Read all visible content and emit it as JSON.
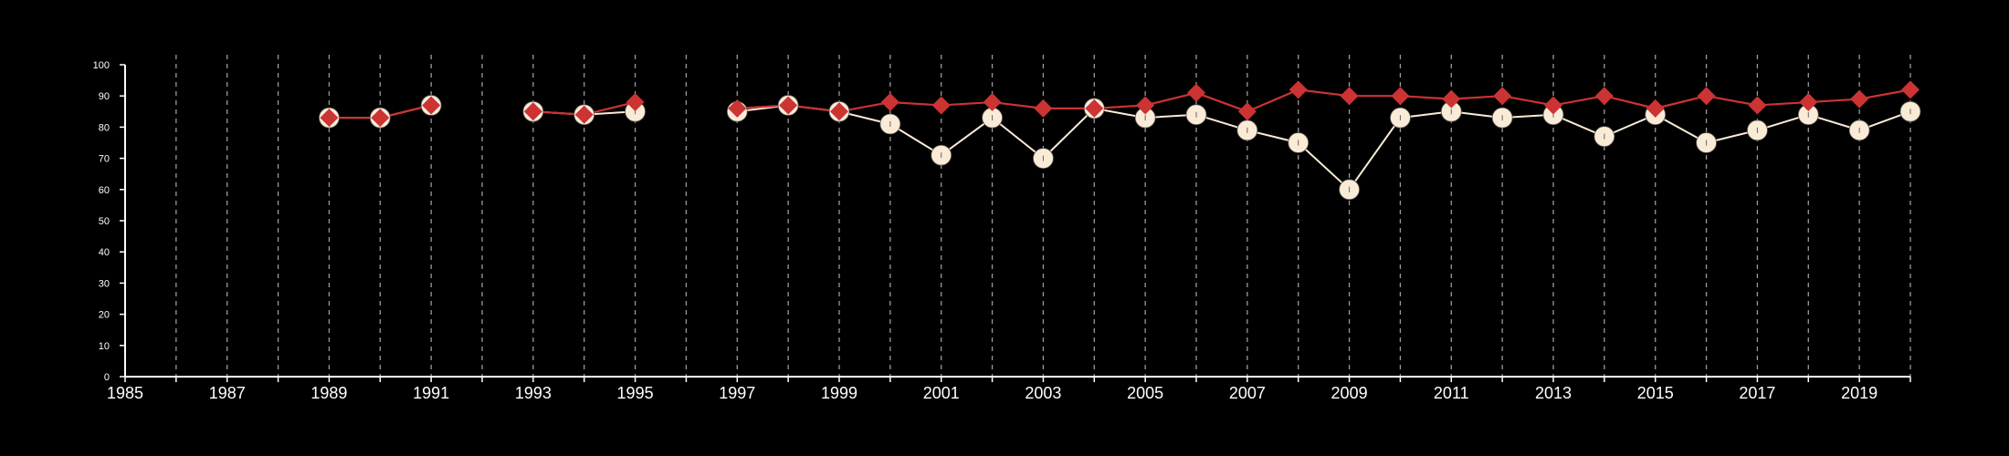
{
  "chart_data": {
    "type": "line",
    "title": "",
    "xlabel": "",
    "ylabel": "",
    "xlim": [
      1985,
      2020
    ],
    "ylim": [
      0,
      100
    ],
    "x_ticks": [
      1985,
      1987,
      1989,
      1991,
      1993,
      1995,
      1997,
      1999,
      2001,
      2003,
      2005,
      2007,
      2009,
      2011,
      2013,
      2015,
      2017,
      2019
    ],
    "y_ticks": [
      0,
      10,
      20,
      30,
      40,
      50,
      60,
      70,
      80,
      90,
      100
    ],
    "grid": "vertical dashed at every year",
    "legend": "none",
    "background_color": "#000000",
    "series": [
      {
        "marker": "circle",
        "color": "#faebd7",
        "points": [
          [
            1989,
            83
          ],
          [
            1990,
            83
          ],
          [
            1991,
            87
          ],
          [
            1993,
            85
          ],
          [
            1994,
            84
          ],
          [
            1995,
            85
          ],
          [
            1997,
            85
          ],
          [
            1998,
            87
          ],
          [
            1999,
            85
          ],
          [
            2000,
            81
          ],
          [
            2001,
            71
          ],
          [
            2002,
            83
          ],
          [
            2003,
            70
          ],
          [
            2004,
            86
          ],
          [
            2005,
            83
          ],
          [
            2006,
            84
          ],
          [
            2007,
            79
          ],
          [
            2008,
            75
          ],
          [
            2009,
            60
          ],
          [
            2010,
            83
          ],
          [
            2011,
            85
          ],
          [
            2012,
            83
          ],
          [
            2013,
            84
          ],
          [
            2014,
            77
          ],
          [
            2015,
            84
          ],
          [
            2016,
            75
          ],
          [
            2017,
            79
          ],
          [
            2018,
            84
          ],
          [
            2019,
            79
          ],
          [
            2020,
            85
          ]
        ]
      },
      {
        "marker": "diamond",
        "color": "#cc3333",
        "points": [
          [
            1989,
            83
          ],
          [
            1990,
            83
          ],
          [
            1991,
            87
          ],
          [
            1993,
            85
          ],
          [
            1994,
            84
          ],
          [
            1995,
            88
          ],
          [
            1997,
            86
          ],
          [
            1998,
            87
          ],
          [
            1999,
            85
          ],
          [
            2000,
            88
          ],
          [
            2001,
            87
          ],
          [
            2002,
            88
          ],
          [
            2003,
            86
          ],
          [
            2004,
            86
          ],
          [
            2005,
            87
          ],
          [
            2006,
            91
          ],
          [
            2007,
            85
          ],
          [
            2008,
            92
          ],
          [
            2009,
            90
          ],
          [
            2010,
            90
          ],
          [
            2011,
            89
          ],
          [
            2012,
            90
          ],
          [
            2013,
            87
          ],
          [
            2014,
            90
          ],
          [
            2015,
            86
          ],
          [
            2016,
            90
          ],
          [
            2017,
            87
          ],
          [
            2018,
            88
          ],
          [
            2019,
            89
          ],
          [
            2020,
            92
          ]
        ]
      }
    ]
  }
}
